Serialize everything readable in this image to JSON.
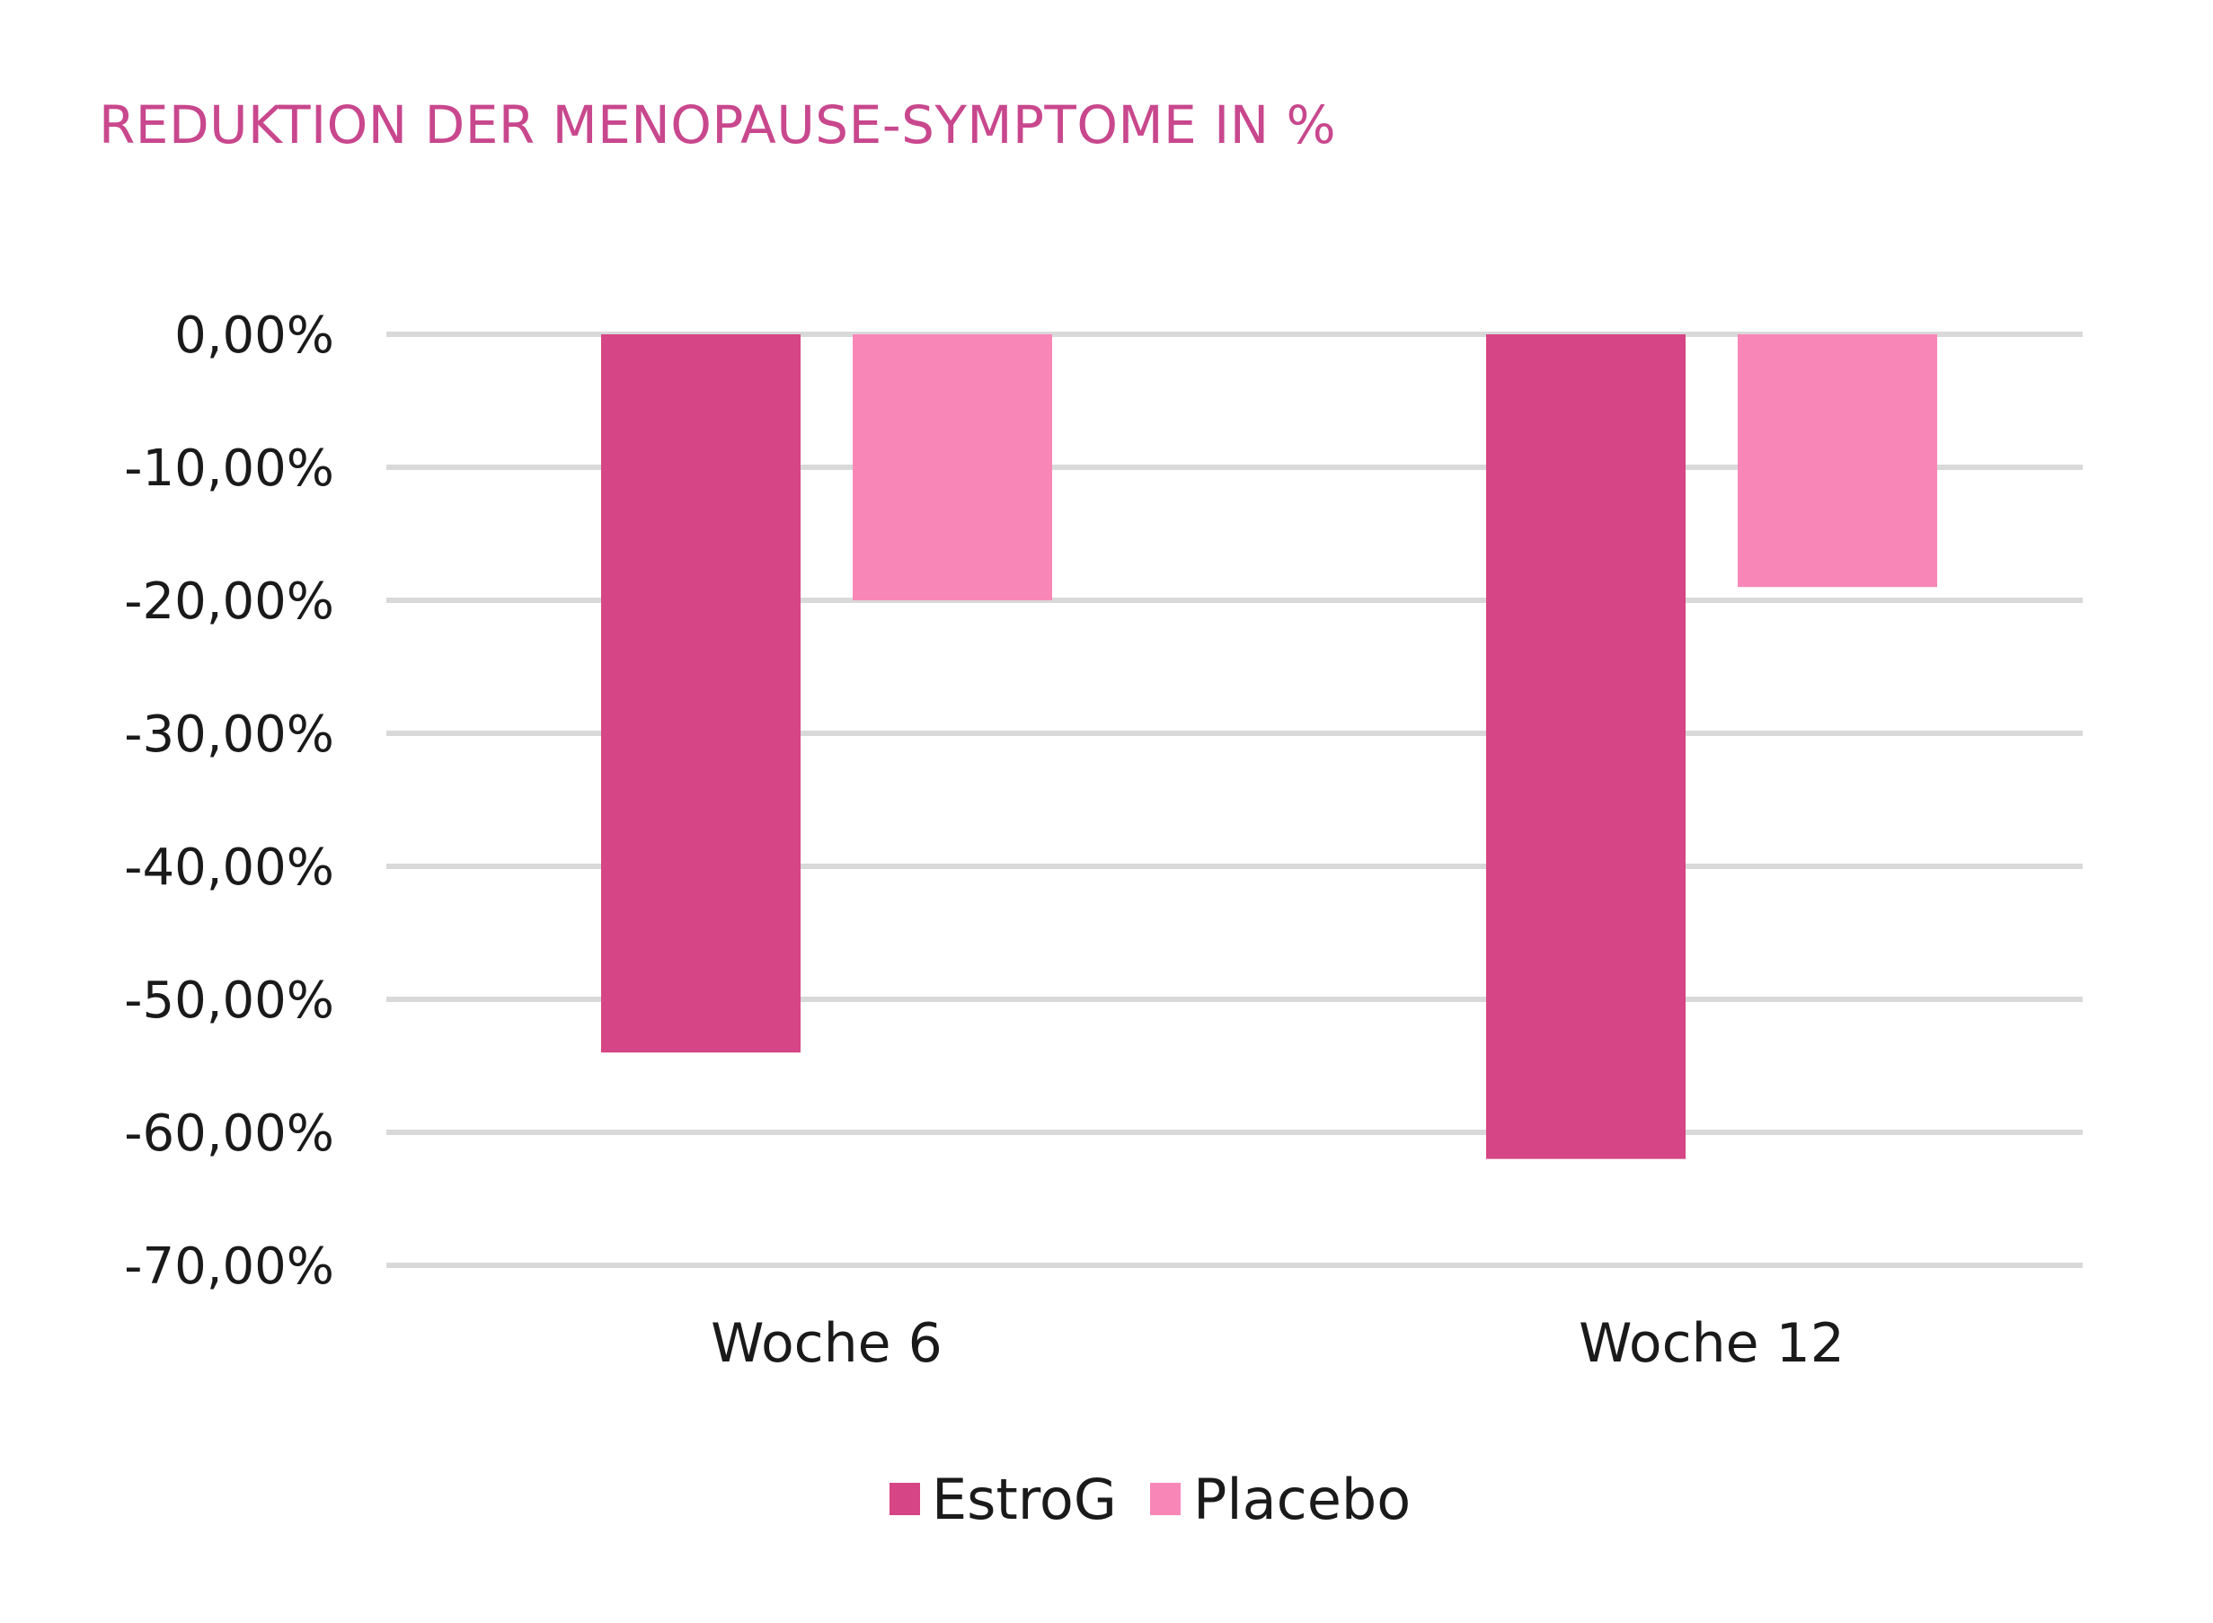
{
  "colors": {
    "title": "#c8478d",
    "grid": "#d9d9d9",
    "estrog": "#d64585",
    "placebo": "#f887b8"
  },
  "chart_data": {
    "type": "bar",
    "title": "REDUKTION DER MENOPAUSE-SYMPTOME IN %",
    "categories": [
      "Woche 6",
      "Woche 12"
    ],
    "series": [
      {
        "name": "EstroG",
        "values": [
          -54,
          -62
        ]
      },
      {
        "name": "Placebo",
        "values": [
          -20,
          -19
        ]
      }
    ],
    "ylim": [
      -70,
      0
    ],
    "yticks": [
      0,
      -10,
      -20,
      -30,
      -40,
      -50,
      -60,
      -70
    ],
    "ytick_labels": [
      "0,00%",
      "-10,00%",
      "-20,00%",
      "-30,00%",
      "-40,00%",
      "-50,00%",
      "-60,00%",
      "-70,00%"
    ],
    "grid": true,
    "legend": "bottom"
  }
}
